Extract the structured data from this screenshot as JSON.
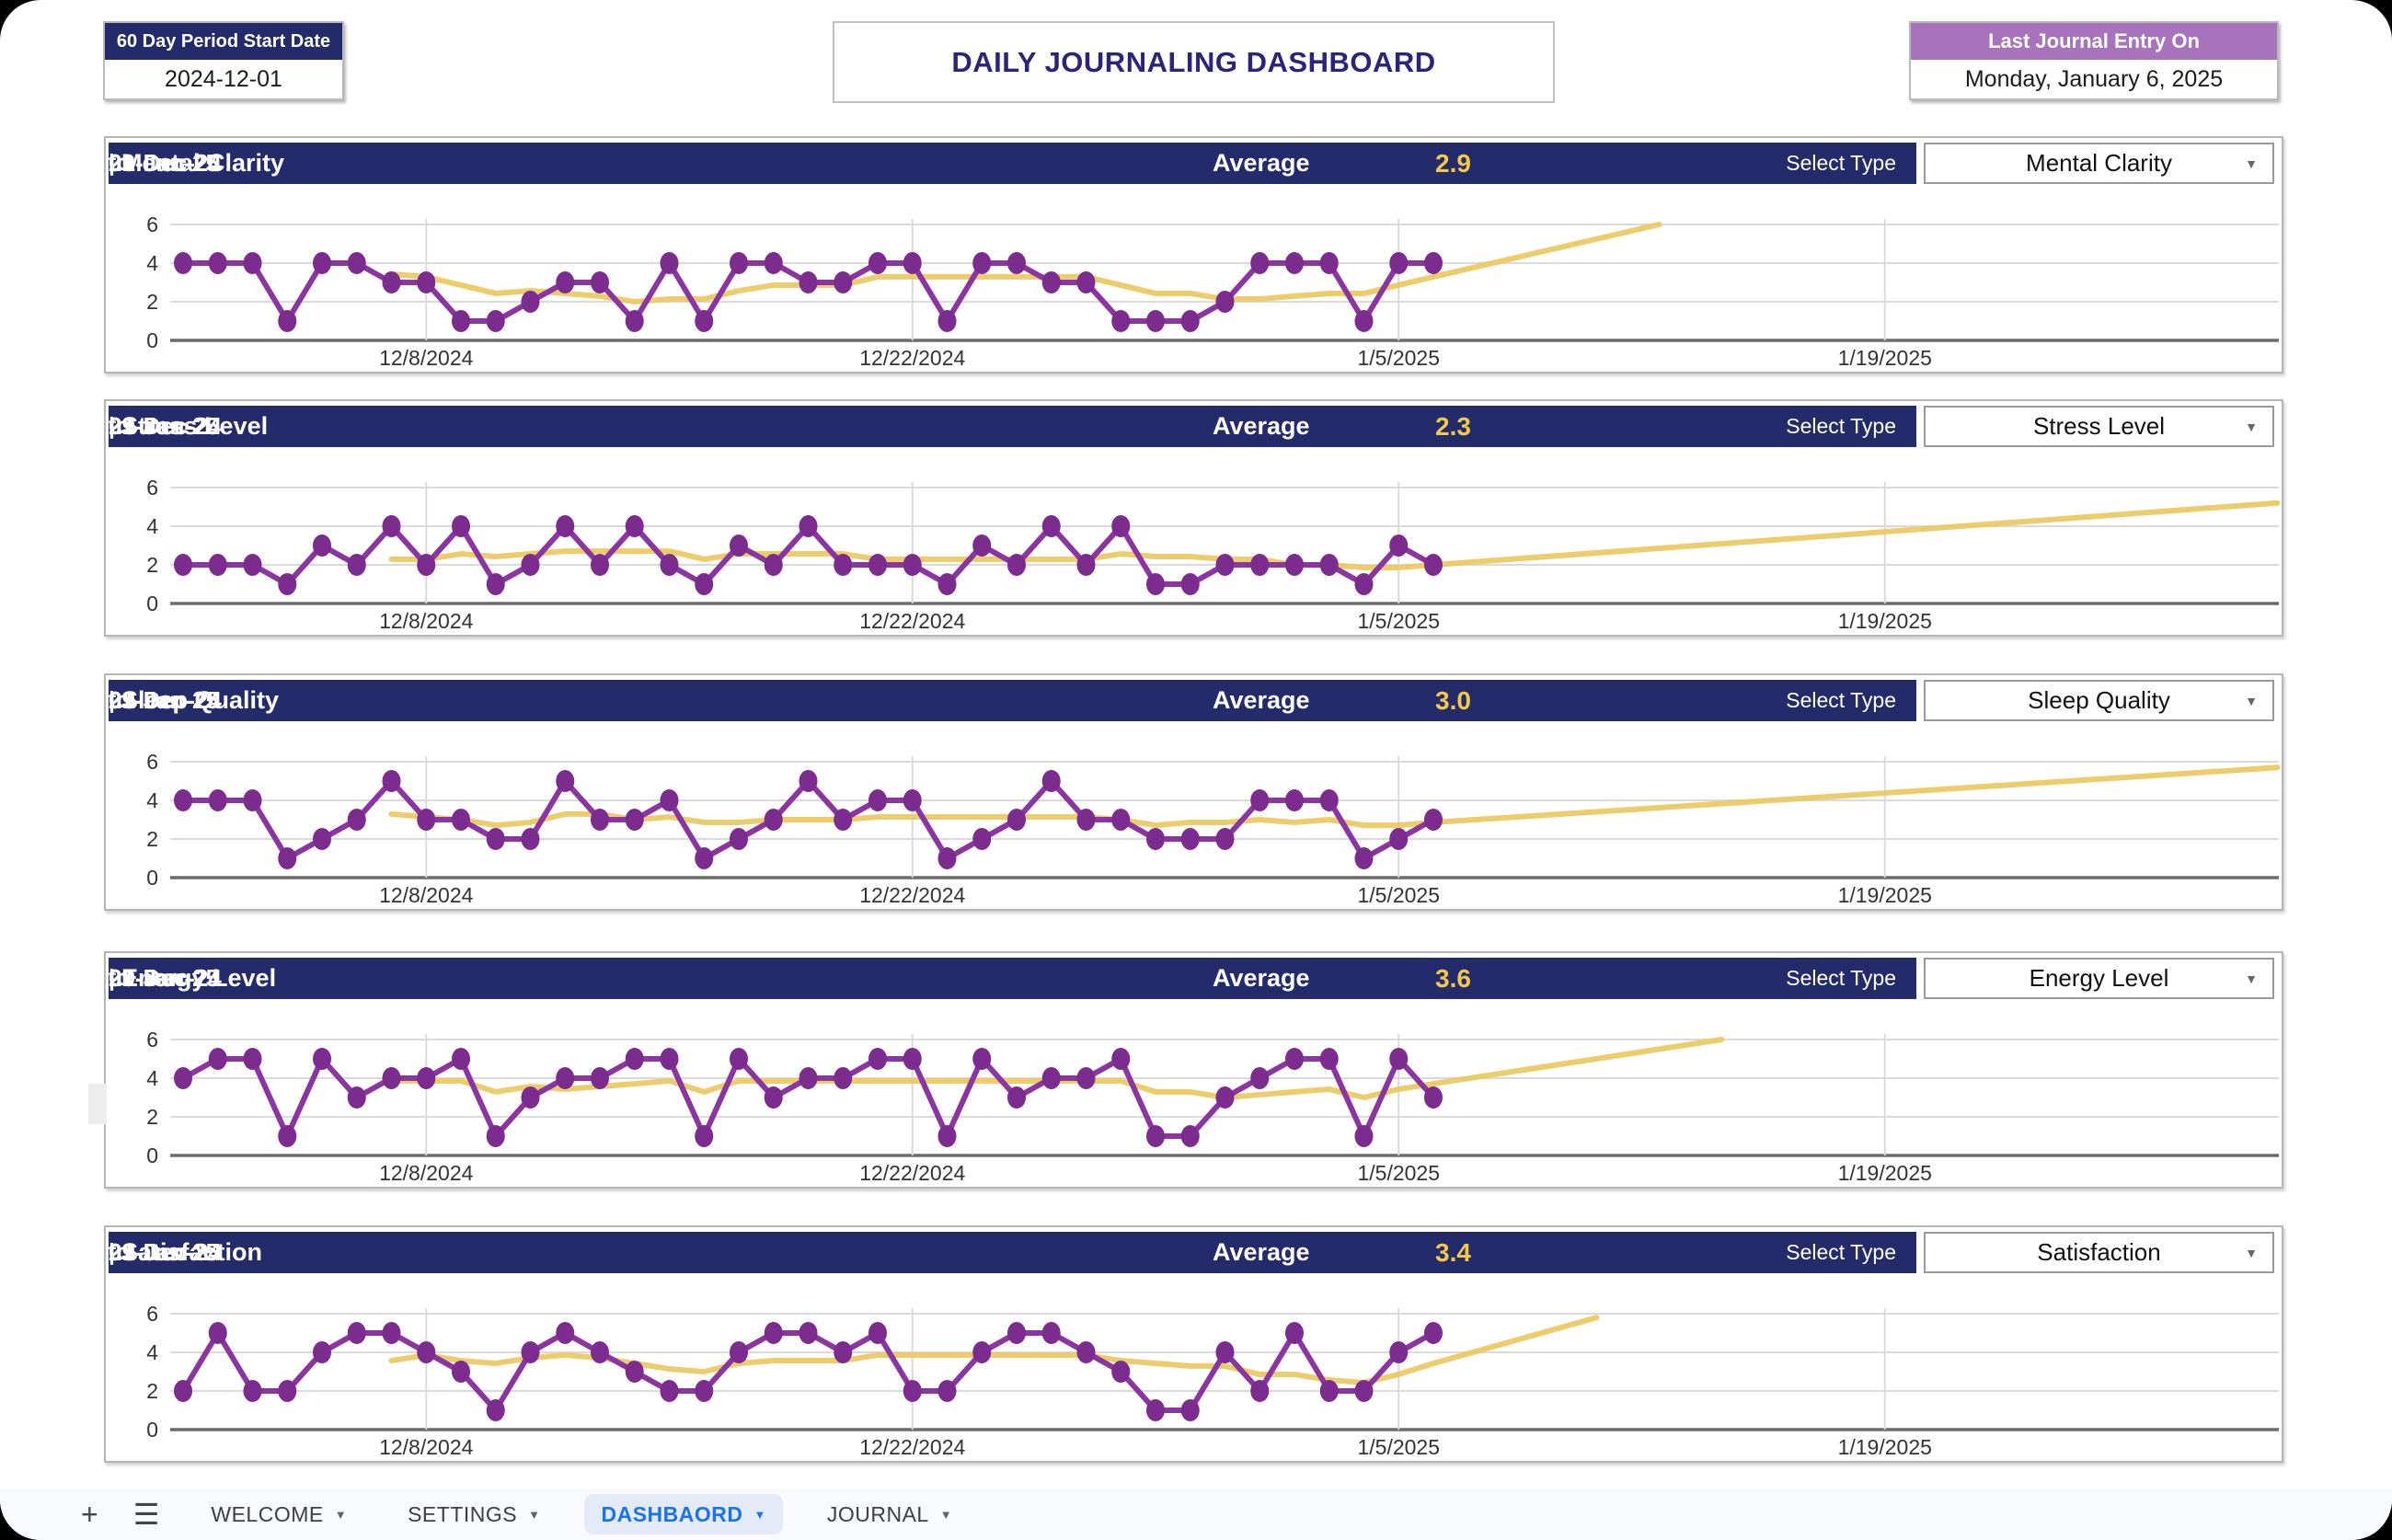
{
  "top": {
    "period_box": {
      "label": "60 Day Period Start Date",
      "value": "2024-12-01"
    },
    "title": "DAILY JOURNALING DASHBOARD",
    "last_entry_box": {
      "label": "Last Journal Entry On",
      "value": "Monday, January 6, 2025"
    }
  },
  "colors": {
    "navy": "#242b6b",
    "header_purple": "#a873bd",
    "title_text": "#2b2478",
    "avg_value": "#f2c94c",
    "line": "#8b35a0",
    "dot": "#7c2b8f",
    "trend": "#ecc963",
    "grid": "#dadada",
    "axis": "#6b6b6b",
    "tick": "#333333",
    "tab_blue": "#1a73e8",
    "tab_active_bg": "#e5eaf8"
  },
  "axes": {
    "y_ticks": [
      6,
      4,
      2,
      0
    ],
    "ylim": [
      0,
      6
    ],
    "x_ticks": [
      {
        "label": "12/8/2024",
        "day": 7
      },
      {
        "label": "12/22/2024",
        "day": 21
      },
      {
        "label": "1/5/2025",
        "day": 35
      },
      {
        "label": "1/19/2025",
        "day": 49
      }
    ],
    "x_start_date": "2024-12-01",
    "x_last_data_date": "2025-01-06"
  },
  "chart_data": [
    {
      "type": "line",
      "title": "Mental Clarity",
      "separator": "|",
      "date_from": "01-Dec-24",
      "to_label": "to",
      "date_to": "29-Jan-25",
      "average_label": "Average",
      "average": "2.9",
      "select_label": "Select Type",
      "dropdown_value": "Mental Clarity",
      "values": [
        4,
        4,
        4,
        1,
        4,
        4,
        3,
        3,
        1,
        1,
        2,
        3,
        3,
        1,
        4,
        1,
        4,
        4,
        3,
        3,
        4,
        4,
        1,
        4,
        4,
        3,
        3,
        1,
        1,
        1,
        2,
        4,
        4,
        4,
        1,
        4,
        4
      ],
      "trend_start_day": 6,
      "trend": [
        3.43,
        3.29,
        2.86,
        2.43,
        2.57,
        2.43,
        2.29,
        2.0,
        2.14,
        2.14,
        2.57,
        2.86,
        2.86,
        2.86,
        3.29,
        3.29,
        3.29,
        3.29,
        3.29,
        3.29,
        3.29,
        2.86,
        2.43,
        2.43,
        2.14,
        2.14,
        2.29,
        2.43,
        2.43,
        2.86,
        3.29
      ],
      "forecast_end": [
        42.5,
        6.0
      ]
    },
    {
      "type": "line",
      "title": "Stress Level",
      "separator": "|",
      "date_from": "01-Dec-24",
      "to_label": "to",
      "date_to": "29-Jan-25",
      "average_label": "Average",
      "average": "2.3",
      "select_label": "Select Type",
      "dropdown_value": "Stress Level",
      "values": [
        2,
        2,
        2,
        1,
        3,
        2,
        4,
        2,
        4,
        1,
        2,
        4,
        2,
        4,
        2,
        1,
        3,
        2,
        4,
        2,
        2,
        2,
        1,
        3,
        2,
        4,
        2,
        4,
        1,
        1,
        2,
        2,
        2,
        2,
        1,
        3,
        2
      ],
      "trend_start_day": 6,
      "trend": [
        2.29,
        2.29,
        2.57,
        2.43,
        2.57,
        2.71,
        2.71,
        2.71,
        2.71,
        2.29,
        2.57,
        2.57,
        2.57,
        2.57,
        2.29,
        2.29,
        2.29,
        2.29,
        2.29,
        2.29,
        2.29,
        2.57,
        2.43,
        2.43,
        2.29,
        2.29,
        2.0,
        2.0,
        1.86,
        1.86,
        2.0
      ],
      "forecast_end": [
        60.3,
        5.2
      ]
    },
    {
      "type": "line",
      "title": "Sleep Quality",
      "separator": "|",
      "date_from": "01-Dec-24",
      "to_label": "to",
      "date_to": "29-Jan-25",
      "average_label": "Average",
      "average": "3.0",
      "select_label": "Select Type",
      "dropdown_value": "Sleep Quality",
      "values": [
        4,
        4,
        4,
        1,
        2,
        3,
        5,
        3,
        3,
        2,
        2,
        5,
        3,
        3,
        4,
        1,
        2,
        3,
        5,
        3,
        4,
        4,
        1,
        2,
        3,
        5,
        3,
        3,
        2,
        2,
        2,
        4,
        4,
        4,
        1,
        2,
        3
      ],
      "trend_start_day": 6,
      "trend": [
        3.29,
        3.14,
        3.0,
        2.71,
        2.86,
        3.29,
        3.29,
        3.0,
        3.14,
        2.86,
        2.86,
        3.0,
        3.0,
        3.0,
        3.14,
        3.14,
        3.14,
        3.14,
        3.14,
        3.14,
        3.14,
        3.0,
        2.71,
        2.86,
        2.86,
        3.0,
        2.86,
        3.0,
        2.71,
        2.71,
        2.86
      ],
      "forecast_end": [
        60.3,
        5.7
      ]
    },
    {
      "type": "line",
      "title": "Energy Level",
      "separator": "|",
      "date_from": "01-Dec-24",
      "to_label": "to",
      "date_to": "29-Jan-25",
      "average_label": "Average",
      "average": "3.6",
      "select_label": "Select Type",
      "dropdown_value": "Energy Level",
      "values": [
        4,
        5,
        5,
        1,
        5,
        3,
        4,
        4,
        5,
        1,
        3,
        4,
        4,
        5,
        5,
        1,
        5,
        3,
        4,
        4,
        5,
        5,
        1,
        5,
        3,
        4,
        4,
        5,
        1,
        1,
        3,
        4,
        5,
        5,
        1,
        5,
        3
      ],
      "trend_start_day": 6,
      "trend": [
        3.86,
        3.86,
        3.86,
        3.29,
        3.57,
        3.43,
        3.57,
        3.71,
        3.86,
        3.29,
        3.86,
        3.86,
        3.86,
        3.86,
        3.86,
        3.86,
        3.86,
        3.86,
        3.86,
        3.86,
        3.86,
        3.86,
        3.29,
        3.29,
        3.0,
        3.14,
        3.29,
        3.43,
        3.0,
        3.43,
        3.71
      ],
      "forecast_end": [
        44.3,
        6.0
      ]
    },
    {
      "type": "line",
      "title": "Satisfaction",
      "separator": "|",
      "date_from": "01-Dec-24",
      "to_label": "to",
      "date_to": "29-Jan-25",
      "average_label": "Average",
      "average": "3.4",
      "select_label": "Select Type",
      "dropdown_value": "Satisfaction",
      "values": [
        2,
        5,
        2,
        2,
        4,
        5,
        5,
        4,
        3,
        1,
        4,
        5,
        4,
        3,
        2,
        2,
        4,
        5,
        5,
        4,
        5,
        2,
        2,
        4,
        5,
        5,
        4,
        3,
        1,
        1,
        4,
        2,
        5,
        2,
        2,
        4,
        5
      ],
      "trend_start_day": 6,
      "trend": [
        3.57,
        3.86,
        3.57,
        3.43,
        3.71,
        3.86,
        3.71,
        3.43,
        3.14,
        3.0,
        3.43,
        3.57,
        3.57,
        3.57,
        3.86,
        3.86,
        3.86,
        3.86,
        3.86,
        3.86,
        3.86,
        3.57,
        3.43,
        3.29,
        3.29,
        2.86,
        2.86,
        2.57,
        2.43,
        2.86,
        3.43
      ],
      "forecast_end": [
        40.7,
        5.8
      ]
    }
  ],
  "tabbar": {
    "plus_icon": "+",
    "menu_icon": "☰",
    "caret_icon": "▼",
    "tabs": [
      {
        "label": "WELCOME",
        "active": false
      },
      {
        "label": "SETTINGS",
        "active": false
      },
      {
        "label": "DASHBAORD",
        "active": true
      },
      {
        "label": "JOURNAL",
        "active": false
      }
    ]
  }
}
